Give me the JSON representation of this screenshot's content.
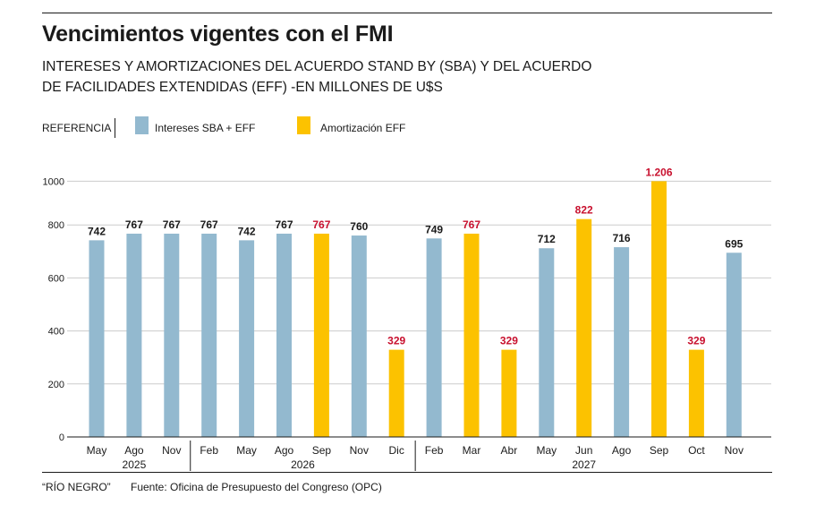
{
  "header": {
    "title": "Vencimientos vigentes con el FMI",
    "subtitle_line1": "INTERESES Y AMORTIZACIONES DEL ACUERDO STAND BY (SBA) Y DEL ACUERDO",
    "subtitle_line2": "DE FACILIDADES EXTENDIDAS (EFF) -EN MILLONES DE U$S"
  },
  "legend": {
    "label": "REFERENCIA",
    "items": [
      {
        "name": "Intereses SBA + EFF",
        "color": "#93b9cf"
      },
      {
        "name": "Amortización EFF",
        "color": "#fcc200"
      }
    ]
  },
  "footer": {
    "credit": "“RÍO NEGRO”",
    "source": "Fuente: Oficina de Presupuesto del Congreso (OPC)"
  },
  "colors": {
    "interest": "#93b9cf",
    "amortization": "#fcc200",
    "label_dark": "#1a1a1a",
    "label_red": "#c8102e",
    "grid": "#cccccc"
  },
  "chart_data": {
    "type": "bar",
    "title": "Vencimientos vigentes con el FMI",
    "subtitle": "INTERESES Y AMORTIZACIONES DEL ACUERDO STAND BY (SBA) Y DEL ACUERDO DE FACILIDADES EXTENDIDAS (EFF) -EN MILLONES DE U$S",
    "xlabel": "",
    "ylabel": "",
    "ylim": [
      0,
      1000
    ],
    "yticks": [
      0,
      200,
      400,
      600,
      800,
      1000
    ],
    "grid": true,
    "legend_position": "top-left",
    "categories": [
      "May",
      "Ago",
      "Nov",
      "Feb",
      "May",
      "Ago",
      "Sep",
      "Nov",
      "Dic",
      "Feb",
      "Mar",
      "Abr",
      "May",
      "Jun",
      "Ago",
      "Sep",
      "Oct",
      "Nov"
    ],
    "year_groups": [
      {
        "year": "2025",
        "count": 3
      },
      {
        "year": "2026",
        "count": 6
      },
      {
        "year": "2027",
        "count": 9
      }
    ],
    "values": [
      742,
      767,
      767,
      767,
      742,
      767,
      767,
      760,
      329,
      749,
      767,
      329,
      712,
      822,
      716,
      1206,
      329,
      695
    ],
    "value_labels": [
      "742",
      "767",
      "767",
      "767",
      "742",
      "767",
      "767",
      "760",
      "329",
      "749",
      "767",
      "329",
      "712",
      "822",
      "716",
      "1.206",
      "329",
      "695"
    ],
    "series_type": [
      "Intereses SBA + EFF",
      "Intereses SBA + EFF",
      "Intereses SBA + EFF",
      "Intereses SBA + EFF",
      "Intereses SBA + EFF",
      "Intereses SBA + EFF",
      "Amortización EFF",
      "Intereses SBA + EFF",
      "Amortización EFF",
      "Intereses SBA + EFF",
      "Amortización EFF",
      "Amortización EFF",
      "Intereses SBA + EFF",
      "Amortización EFF",
      "Intereses SBA + EFF",
      "Amortización EFF",
      "Amortización EFF",
      "Intereses SBA + EFF"
    ],
    "series": [
      {
        "name": "Intereses SBA + EFF",
        "values": [
          742,
          767,
          767,
          767,
          742,
          767,
          null,
          760,
          null,
          749,
          null,
          null,
          712,
          null,
          716,
          null,
          null,
          695
        ]
      },
      {
        "name": "Amortización EFF",
        "values": [
          null,
          null,
          null,
          null,
          null,
          null,
          767,
          null,
          329,
          null,
          767,
          329,
          null,
          822,
          null,
          1206,
          329,
          null
        ]
      }
    ]
  }
}
